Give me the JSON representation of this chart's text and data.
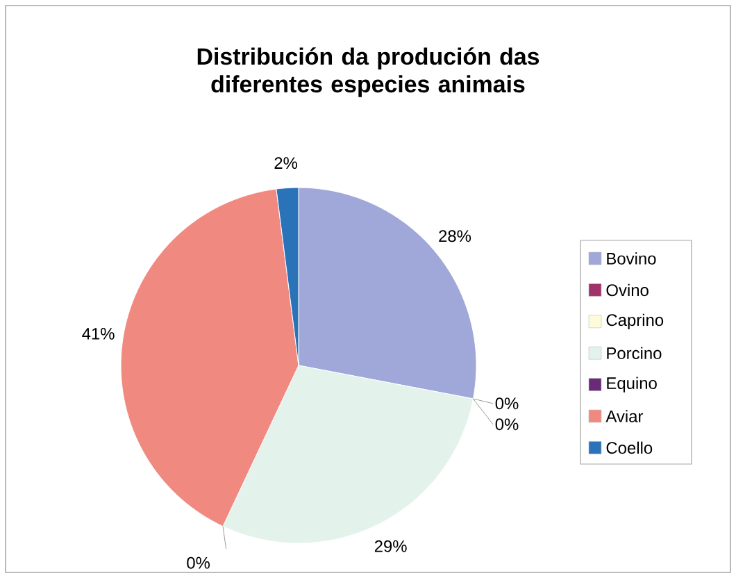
{
  "chart_data": {
    "type": "pie",
    "title": "Distribución da produción das diferentes especies animais",
    "categories": [
      "Bovino",
      "Ovino",
      "Caprino",
      "Porcino",
      "Equino",
      "Aviar",
      "Coello"
    ],
    "values": [
      28,
      0,
      0,
      29,
      0,
      41,
      2
    ],
    "value_labels": [
      "28%",
      "0%",
      "0%",
      "29%",
      "0%",
      "41%",
      "2%"
    ],
    "colors": [
      "#9fa8d8",
      "#a0336a",
      "#fdfbd8",
      "#e4f2ec",
      "#6a2a7a",
      "#f08a80",
      "#2a73b8"
    ],
    "legend": "right"
  }
}
